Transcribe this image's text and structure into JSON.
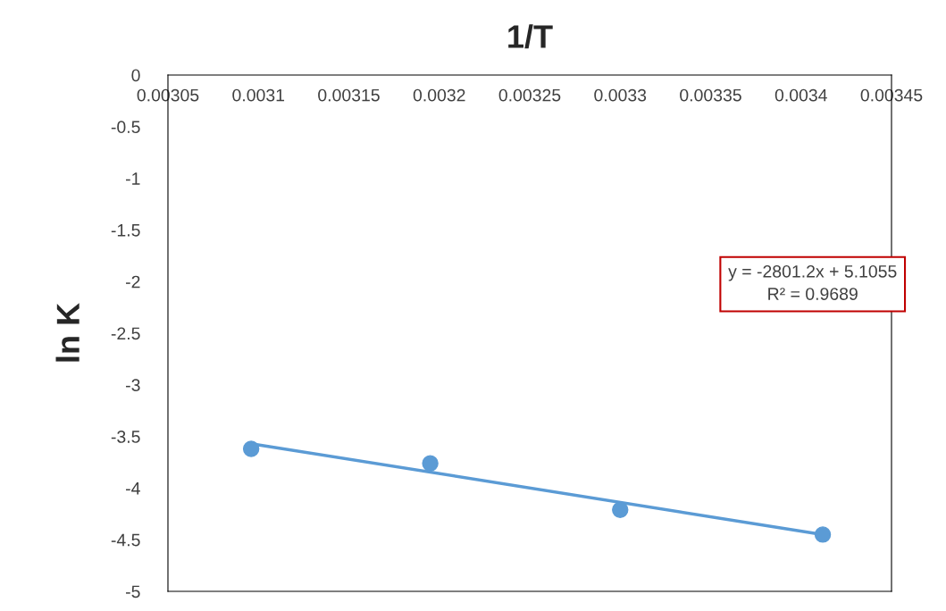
{
  "chart_data": {
    "type": "scatter",
    "xlabel": "1/T",
    "ylabel": "ln K",
    "series": [
      {
        "color": "#5b9bd5",
        "x": [
          0.003096,
          0.003195,
          0.0033,
          0.003412
        ],
        "values": [
          -3.62,
          -3.76,
          -4.21,
          -4.45
        ],
        "marker": "circle"
      },
      {
        "type": "line",
        "color": "#5b9bd5",
        "x": [
          0.003096,
          0.003412
        ],
        "values": [
          -3.57,
          -4.45
        ],
        "marker": "none",
        "line_style": "solid"
      }
    ],
    "xlim": [
      0.00305,
      0.00345
    ],
    "xticks": [
      0.00305,
      0.0031,
      0.00315,
      0.0032,
      0.00325,
      0.0033,
      0.00335,
      0.0034,
      0.00345
    ],
    "ylim": [
      -5,
      0
    ],
    "yticks": [
      -5,
      -4.5,
      -4,
      -3.5,
      -3,
      -2.5,
      -2,
      -1.5,
      -1,
      -0.5,
      0
    ],
    "annotations": [
      "y = -2801.2x + 5.1055\nR² = 0.9689"
    ],
    "grid": false,
    "legend": false
  }
}
